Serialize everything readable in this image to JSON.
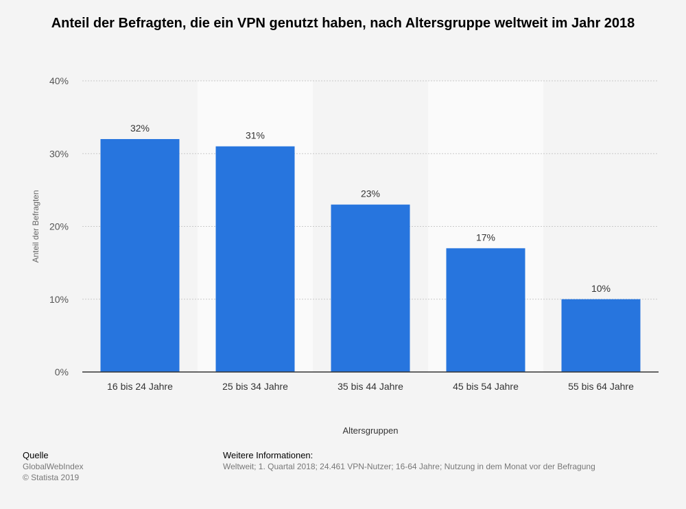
{
  "chart_data": {
    "type": "bar",
    "title": "Anteil der Befragten, die ein VPN genutzt haben, nach Altersgruppe weltweit im Jahr 2018",
    "xlabel": "Altersgruppen",
    "ylabel": "Anteil der Befragten",
    "categories": [
      "16 bis 24 Jahre",
      "25 bis 34 Jahre",
      "35 bis 44 Jahre",
      "45 bis 54 Jahre",
      "55 bis 64 Jahre"
    ],
    "values": [
      32,
      31,
      23,
      17,
      10
    ],
    "value_labels": [
      "32%",
      "31%",
      "23%",
      "17%",
      "10%"
    ],
    "ylim": [
      0,
      40
    ],
    "yticks": [
      0,
      10,
      20,
      30,
      40
    ],
    "ytick_labels": [
      "0%",
      "10%",
      "20%",
      "30%",
      "40%"
    ],
    "grid": true,
    "bar_color": "#2775de",
    "legend": "none"
  },
  "footer": {
    "source_heading": "Quelle",
    "source_name": "GlobalWebIndex",
    "copyright": "© Statista 2019",
    "info_heading": "Weitere Informationen:",
    "info_text": "Weltweit; 1. Quartal 2018; 24.461 VPN-Nutzer; 16-64 Jahre; Nutzung in dem Monat vor der Befragung"
  }
}
